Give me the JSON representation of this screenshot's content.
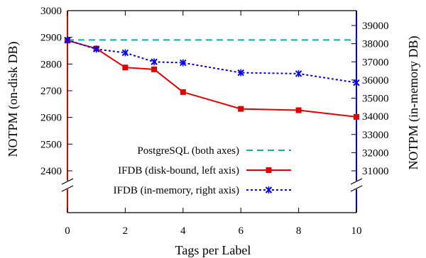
{
  "chart_data": {
    "type": "line",
    "xlabel": "Tags per Label",
    "ylabel_left": "NOTPM (on-disk DB)",
    "ylabel_right": "NOTPM (in-memory DB)",
    "xlim": [
      0,
      10
    ],
    "xticks": [
      0,
      2,
      4,
      6,
      8,
      10
    ],
    "ylim_left": [
      2400,
      3000
    ],
    "yticks_left": [
      2400,
      2500,
      2600,
      2700,
      2800,
      2900,
      3000
    ],
    "ylim_right": [
      31000,
      39000
    ],
    "yticks_right": [
      31000,
      32000,
      33000,
      34000,
      35000,
      36000,
      37000,
      38000,
      39000
    ],
    "legend_position": "bottom-left",
    "grid": false,
    "axis_break": true,
    "series": [
      {
        "name": "PostgreSQL (both axes)",
        "axis": "left",
        "style": "dashed",
        "marker": "none",
        "color": "#11aaaa",
        "x": [
          0,
          10
        ],
        "y": [
          2890,
          2890
        ]
      },
      {
        "name": "IFDB (disk-bound, left axis)",
        "axis": "left",
        "style": "solid",
        "marker": "square",
        "color": "#e00000",
        "x": [
          0,
          1,
          2,
          3,
          4,
          6,
          8,
          10
        ],
        "y": [
          2888,
          2858,
          2787,
          2780,
          2695,
          2632,
          2627,
          2602
        ]
      },
      {
        "name": "IFDB (in-memory, right axis)",
        "axis": "right",
        "style": "dotted",
        "marker": "x",
        "color": "#0000ee",
        "x": [
          0,
          1,
          2,
          3,
          4,
          6,
          8,
          10
        ],
        "y": [
          38200,
          37700,
          37500,
          37000,
          36950,
          36400,
          36350,
          35850
        ]
      }
    ]
  }
}
